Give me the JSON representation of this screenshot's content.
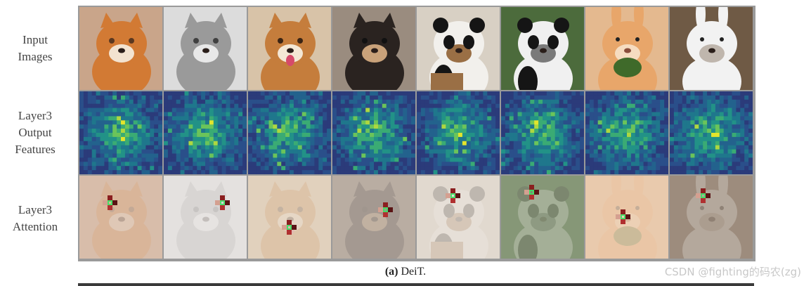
{
  "row_labels": {
    "input": [
      "Input",
      "Images"
    ],
    "features": [
      "Layer3",
      "Output",
      "Features"
    ],
    "attention": [
      "Layer3",
      "Attention"
    ]
  },
  "caption": {
    "label": "(a)",
    "text": " DeiT."
  },
  "watermark": "CSDN @fighting的码农(zg)",
  "columns": [
    {
      "subject": "orange-cat",
      "bg": "#c9a58a",
      "main": "#d27a34",
      "accent": "#f3e3d0",
      "dark": "#5b3820"
    },
    {
      "subject": "grey-cat",
      "bg": "#dcdcdc",
      "main": "#9a9a9a",
      "accent": "#e8e8e8",
      "dark": "#404040"
    },
    {
      "subject": "shiba-dog",
      "bg": "#d8c3a8",
      "main": "#c57d3c",
      "accent": "#f4e7d5",
      "dark": "#3a2414"
    },
    {
      "subject": "black-puppy",
      "bg": "#9a8c7f",
      "main": "#2a2320",
      "accent": "#c9a27a",
      "dark": "#111111"
    },
    {
      "subject": "panda-on-stump",
      "bg": "#d8d0c4",
      "main": "#f2f0ec",
      "accent": "#9a6f45",
      "dark": "#151515"
    },
    {
      "subject": "panda-on-tree",
      "bg": "#4c6b3c",
      "main": "#f0f0f0",
      "accent": "#7a7a7a",
      "dark": "#151515"
    },
    {
      "subject": "rabbit-eating",
      "bg": "#e4b98f",
      "main": "#e8a66a",
      "accent": "#f6dcc0",
      "dark": "#3f6a2a"
    },
    {
      "subject": "white-rabbit",
      "bg": "#6f5a45",
      "main": "#f2f2f2",
      "accent": "#bfb6ad",
      "dark": "#2b2b2b"
    }
  ]
}
